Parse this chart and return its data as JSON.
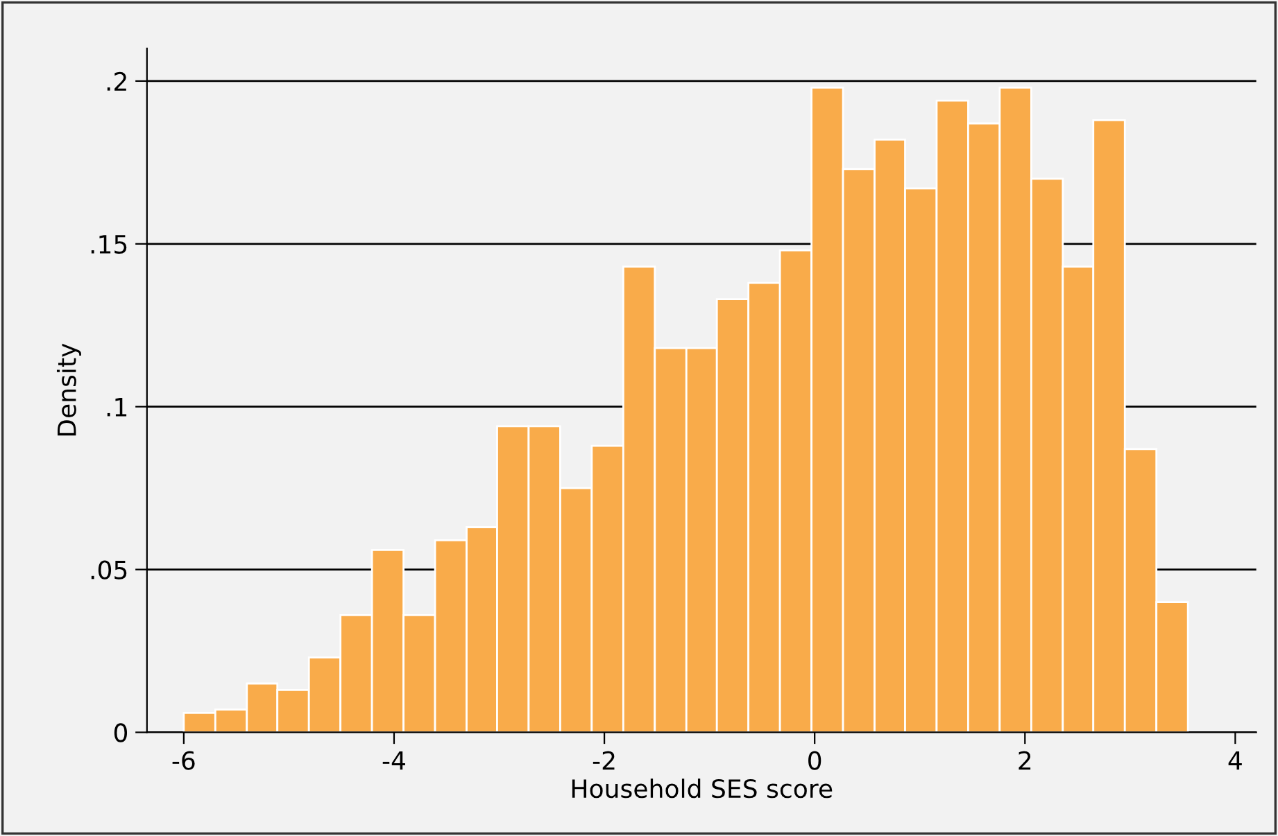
{
  "chart_data": {
    "type": "histogram",
    "xlabel": "Household SES score",
    "ylabel": "Density",
    "color": "#f9ab4a",
    "bins": [
      -6,
      -5.7,
      -5.4,
      -5.11,
      -4.81,
      -4.51,
      -4.21,
      -3.91,
      -3.61,
      -3.31,
      -3.02,
      -2.72,
      -2.42,
      -2.12,
      -1.82,
      -1.52,
      -1.22,
      -0.93,
      -0.63,
      -0.33,
      -0.03,
      0.27,
      0.57,
      0.86,
      1.16,
      1.46,
      1.76,
      2.06,
      2.36,
      2.65,
      2.95,
      3.25,
      3.55
    ],
    "values": [
      0.006,
      0.007,
      0.015,
      0.013,
      0.023,
      0.036,
      0.056,
      0.036,
      0.059,
      0.063,
      0.094,
      0.094,
      0.075,
      0.088,
      0.143,
      0.118,
      0.118,
      0.133,
      0.138,
      0.148,
      0.198,
      0.173,
      0.182,
      0.167,
      0.194,
      0.187,
      0.198,
      0.17,
      0.143,
      0.188,
      0.087,
      0.04
    ],
    "xlim": [
      -6.35,
      4.2
    ],
    "ylim": [
      0,
      0.21
    ],
    "xticks": [
      -6,
      -4,
      -2,
      0,
      2,
      4
    ],
    "yticks": [
      {
        "value": 0,
        "label": "0"
      },
      {
        "value": 0.05,
        "label": ".05"
      },
      {
        "value": 0.1,
        "label": ".1"
      },
      {
        "value": 0.15,
        "label": ".15"
      },
      {
        "value": 0.2,
        "label": ".2"
      }
    ],
    "grid": "y"
  }
}
